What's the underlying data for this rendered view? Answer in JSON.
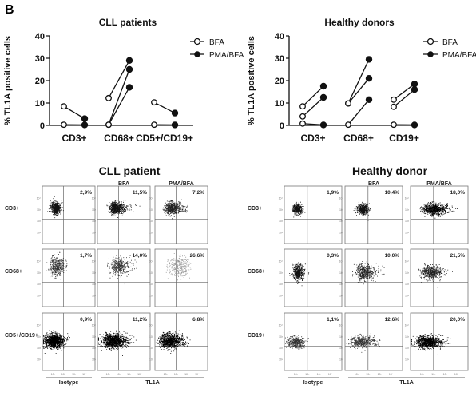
{
  "panel_label": "B",
  "chart_data": [
    {
      "type": "scatter",
      "title": "CLL patients",
      "ylabel": "% TL1A positive cells",
      "ylim": [
        0,
        40
      ],
      "yticks": [
        0,
        10,
        20,
        30,
        40
      ],
      "categories": [
        "CD3+",
        "CD68+",
        "CD5+/CD19+"
      ],
      "legend": [
        "BFA",
        "PMA/BFA"
      ],
      "legend_position": "top-right",
      "pairs": [
        {
          "category": "CD3+",
          "bfa": 8.5,
          "pma": 3.0
        },
        {
          "category": "CD3+",
          "bfa": 0.3,
          "pma": 0.2
        },
        {
          "category": "CD68+",
          "bfa": 12.2,
          "pma": 29.0
        },
        {
          "category": "CD68+",
          "bfa": 0.3,
          "pma": 25.0
        },
        {
          "category": "CD68+",
          "bfa": 0.3,
          "pma": 17.0
        },
        {
          "category": "CD5+/CD19+",
          "bfa": 10.3,
          "pma": 5.5
        },
        {
          "category": "CD5+/CD19+",
          "bfa": 0.3,
          "pma": 0.2
        }
      ]
    },
    {
      "type": "scatter",
      "title": "Healthy donors",
      "ylabel": "% TL1A positive cells",
      "ylim": [
        0,
        40
      ],
      "yticks": [
        0,
        10,
        20,
        30,
        40
      ],
      "categories": [
        "CD3+",
        "CD68+",
        "CD19+"
      ],
      "legend": [
        "BFA",
        "PMA/BFA"
      ],
      "legend_position": "top-right",
      "pairs": [
        {
          "category": "CD3+",
          "bfa": 8.5,
          "pma": 17.5
        },
        {
          "category": "CD3+",
          "bfa": 4.0,
          "pma": 12.5
        },
        {
          "category": "CD3+",
          "bfa": 0.8,
          "pma": 0.2
        },
        {
          "category": "CD68+",
          "bfa": 9.8,
          "pma": 29.5
        },
        {
          "category": "CD68+",
          "bfa": 9.8,
          "pma": 21.0
        },
        {
          "category": "CD68+",
          "bfa": 0.3,
          "pma": 11.5
        },
        {
          "category": "CD19+",
          "bfa": 11.5,
          "pma": 18.5
        },
        {
          "category": "CD19+",
          "bfa": 8.3,
          "pma": 16.0
        },
        {
          "category": "CD19+",
          "bfa": 0.3,
          "pma": 0.2
        }
      ]
    },
    {
      "type": "scatter",
      "subtype": "flow-cytometry-grid",
      "title": "CLL patient",
      "column_headers": [
        "",
        "BFA",
        "PMA/BFA"
      ],
      "row_labels": [
        "CD3+",
        "CD68+",
        "CD5+/CD19+"
      ],
      "percentages": [
        [
          "2,9%",
          "11,5%",
          "7,2%"
        ],
        [
          "1,7%",
          "14,0%",
          "26,6%"
        ],
        [
          "0,9%",
          "11,2%",
          "6,8%"
        ]
      ],
      "bottom_left_label": "Isotype",
      "bottom_right_label": "TL1A",
      "tick_labels": [
        "10¹",
        "10²",
        "10³",
        "10⁴"
      ]
    },
    {
      "type": "scatter",
      "subtype": "flow-cytometry-grid",
      "title": "Healthy donor",
      "column_headers": [
        "",
        "BFA",
        "PMA/BFA"
      ],
      "row_labels": [
        "CD3+",
        "CD68+",
        "CD19+"
      ],
      "percentages": [
        [
          "1,9%",
          "10,4%",
          "18,0%"
        ],
        [
          "0,3%",
          "10,0%",
          "21,5%"
        ],
        [
          "1,1%",
          "12,6%",
          "20,0%"
        ]
      ],
      "bottom_left_label": "Isotype",
      "bottom_right_label": "TL1A",
      "tick_labels": [
        "10¹",
        "10²",
        "10³",
        "10⁴"
      ]
    }
  ]
}
